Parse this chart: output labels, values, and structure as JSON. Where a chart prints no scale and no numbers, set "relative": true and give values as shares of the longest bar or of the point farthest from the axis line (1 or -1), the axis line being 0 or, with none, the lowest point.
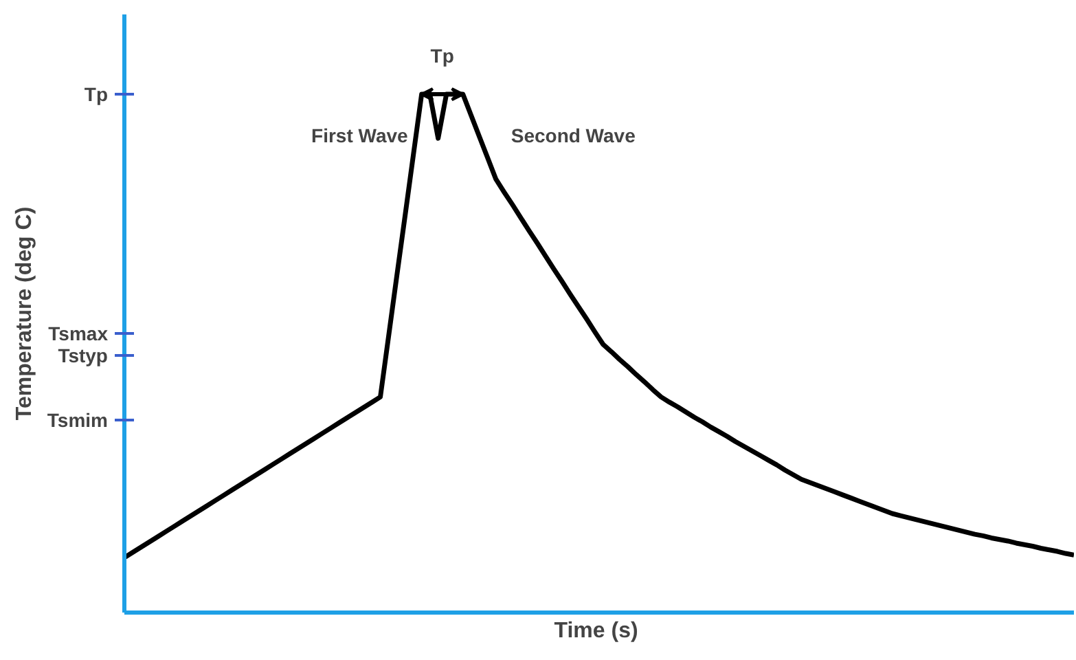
{
  "chart_data": {
    "type": "line",
    "xlabel": "Time  (s)",
    "ylabel": "Temperature (deg C)",
    "categories": [
      null,
      null,
      null,
      null,
      null,
      null,
      null,
      null,
      null,
      null,
      null,
      null,
      null,
      null,
      null,
      null,
      null,
      null,
      null,
      null,
      null,
      null,
      null,
      null,
      null,
      null,
      null,
      null,
      null,
      null,
      null,
      null,
      null,
      null,
      null,
      null,
      null,
      null,
      null,
      null,
      null,
      null,
      null,
      null,
      null,
      null,
      null,
      null,
      null,
      null,
      null,
      null,
      null,
      null,
      null,
      null,
      null,
      null,
      null,
      null,
      null,
      null,
      null,
      null,
      null,
      null,
      null,
      null,
      null,
      null,
      null,
      null,
      null,
      null,
      null,
      null,
      null,
      null,
      null,
      null,
      null,
      null,
      null,
      null,
      null,
      null,
      null,
      null,
      null,
      null,
      null,
      null,
      null,
      null,
      null,
      null,
      null,
      null,
      null,
      null,
      null,
      null,
      null,
      null,
      null,
      null,
      null,
      null,
      null,
      null,
      null,
      null,
      null,
      null,
      null,
      null
    ],
    "relative": true,
    "line_style": "solid",
    "series": [
      {
        "color": "#000000",
        "values": [
          0.106,
          0.116,
          0.126,
          0.136,
          0.146,
          0.156,
          0.166,
          0.176,
          0.186,
          0.196,
          0.206,
          0.216,
          0.226,
          0.236,
          0.246,
          0.256,
          0.266,
          0.276,
          0.286,
          0.296,
          0.306,
          0.316,
          0.326,
          0.336,
          0.346,
          0.356,
          0.366,
          0.376,
          0.386,
          0.396,
          0.406,
          0.416,
          0.533,
          0.65,
          0.766,
          0.883,
          1.0,
          1.0,
          0.915,
          1.0,
          1.0,
          1.0,
          0.959,
          0.918,
          0.877,
          0.836,
          0.811,
          0.787,
          0.762,
          0.737,
          0.713,
          0.688,
          0.663,
          0.639,
          0.614,
          0.59,
          0.566,
          0.541,
          0.517,
          0.503,
          0.488,
          0.474,
          0.459,
          0.445,
          0.43,
          0.416,
          0.406,
          0.397,
          0.387,
          0.377,
          0.368,
          0.358,
          0.349,
          0.34,
          0.33,
          0.321,
          0.312,
          0.303,
          0.294,
          0.285,
          0.275,
          0.266,
          0.257,
          0.251,
          0.245,
          0.239,
          0.233,
          0.227,
          0.221,
          0.215,
          0.209,
          0.203,
          0.197,
          0.191,
          0.187,
          0.183,
          0.179,
          0.175,
          0.171,
          0.167,
          0.163,
          0.159,
          0.155,
          0.151,
          0.148,
          0.144,
          0.141,
          0.138,
          0.134,
          0.131,
          0.128,
          0.124,
          0.121,
          0.118,
          0.114,
          0.111
        ]
      }
    ],
    "annotations": [
      "First Wave",
      "Second Wave",
      "Tp"
    ],
    "ref_lines": [
      {
        "axis": "y",
        "value": 1.0,
        "label": "Tp",
        "color": "#3a5fcd"
      },
      {
        "axis": "y",
        "value": 0.538,
        "label": "Tsmax",
        "color": "#3a5fcd"
      },
      {
        "axis": "y",
        "value": 0.496,
        "label": "Tstyp",
        "color": "#3a5fcd"
      },
      {
        "axis": "y",
        "value": 0.371,
        "label": "Tsmim",
        "color": "#3a5fcd"
      }
    ]
  }
}
